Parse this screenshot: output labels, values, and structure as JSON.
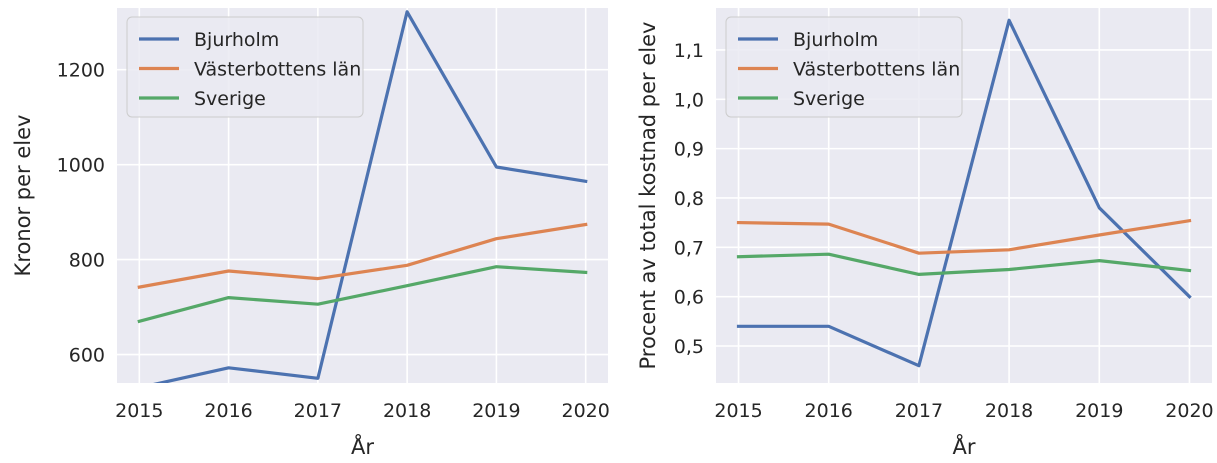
{
  "chart_data": [
    {
      "type": "line",
      "xlabel": "År",
      "ylabel": "Kronor per elev",
      "categories": [
        "2015",
        "2016",
        "2017",
        "2018",
        "2019",
        "2020"
      ],
      "x": [
        2015,
        2016,
        2017,
        2018,
        2019,
        2020
      ],
      "ylim": [
        540,
        1330
      ],
      "yticks": [
        600,
        800,
        1000,
        1200
      ],
      "ytick_labels": [
        "600",
        "800",
        "1000",
        "1200"
      ],
      "grid": true,
      "legend_position": "top-left",
      "series": [
        {
          "name": "Bjurholm",
          "color": "#4c72b0",
          "values": [
            530,
            572,
            550,
            1322,
            995,
            965
          ]
        },
        {
          "name": "Västerbottens län",
          "color": "#dd8452",
          "values": [
            742,
            776,
            760,
            788,
            844,
            874
          ]
        },
        {
          "name": "Sverige",
          "color": "#55a868",
          "values": [
            670,
            720,
            706,
            745,
            785,
            773
          ]
        }
      ]
    },
    {
      "type": "line",
      "xlabel": "År",
      "ylabel": "Procent av total kostnad per elev",
      "categories": [
        "2015",
        "2016",
        "2017",
        "2018",
        "2019",
        "2020"
      ],
      "x": [
        2015,
        2016,
        2017,
        2018,
        2019,
        2020
      ],
      "ylim": [
        0.425,
        1.185
      ],
      "yticks": [
        0.5,
        0.6,
        0.7,
        0.8,
        0.9,
        1.0,
        1.1
      ],
      "ytick_labels": [
        "0,5",
        "0,6",
        "0,7",
        "0,8",
        "0,9",
        "1,0",
        "1,1"
      ],
      "grid": true,
      "legend_position": "top-left",
      "series": [
        {
          "name": "Bjurholm",
          "color": "#4c72b0",
          "values": [
            0.54,
            0.54,
            0.46,
            1.16,
            0.78,
            0.6
          ]
        },
        {
          "name": "Västerbottens län",
          "color": "#dd8452",
          "values": [
            0.75,
            0.747,
            0.688,
            0.695,
            0.725,
            0.754
          ]
        },
        {
          "name": "Sverige",
          "color": "#55a868",
          "values": [
            0.681,
            0.686,
            0.645,
            0.655,
            0.673,
            0.653
          ]
        }
      ]
    }
  ]
}
